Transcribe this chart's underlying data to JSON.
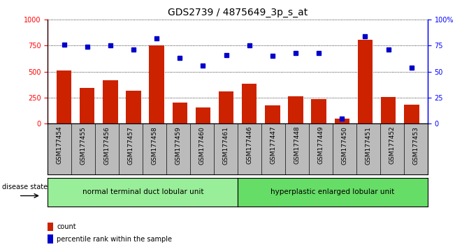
{
  "title": "GDS2739 / 4875649_3p_s_at",
  "samples": [
    "GSM177454",
    "GSM177455",
    "GSM177456",
    "GSM177457",
    "GSM177458",
    "GSM177459",
    "GSM177460",
    "GSM177461",
    "GSM177446",
    "GSM177447",
    "GSM177448",
    "GSM177449",
    "GSM177450",
    "GSM177451",
    "GSM177452",
    "GSM177453"
  ],
  "counts": [
    510,
    345,
    415,
    315,
    755,
    205,
    155,
    310,
    385,
    175,
    265,
    235,
    50,
    810,
    255,
    180
  ],
  "percentiles": [
    76,
    74,
    75,
    71,
    82,
    63,
    56,
    66,
    75,
    65,
    68,
    68,
    5,
    84,
    71,
    54
  ],
  "group1_label": "normal terminal duct lobular unit",
  "group1_count": 8,
  "group2_label": "hyperplastic enlarged lobular unit",
  "group2_count": 8,
  "bar_color": "#cc2200",
  "dot_color": "#0000cc",
  "group1_bg": "#99ee99",
  "group2_bg": "#66dd66",
  "tick_bg": "#bbbbbb",
  "ylim_left": [
    0,
    1000
  ],
  "ylim_right": [
    0,
    100
  ],
  "yticks_left": [
    0,
    250,
    500,
    750,
    1000
  ],
  "yticks_right": [
    0,
    25,
    50,
    75,
    100
  ],
  "disease_state_label": "disease state",
  "legend_count_label": "count",
  "legend_pct_label": "percentile rank within the sample",
  "title_fontsize": 10,
  "tick_fontsize": 6.5,
  "group_label_fontsize": 7.5,
  "legend_fontsize": 7
}
